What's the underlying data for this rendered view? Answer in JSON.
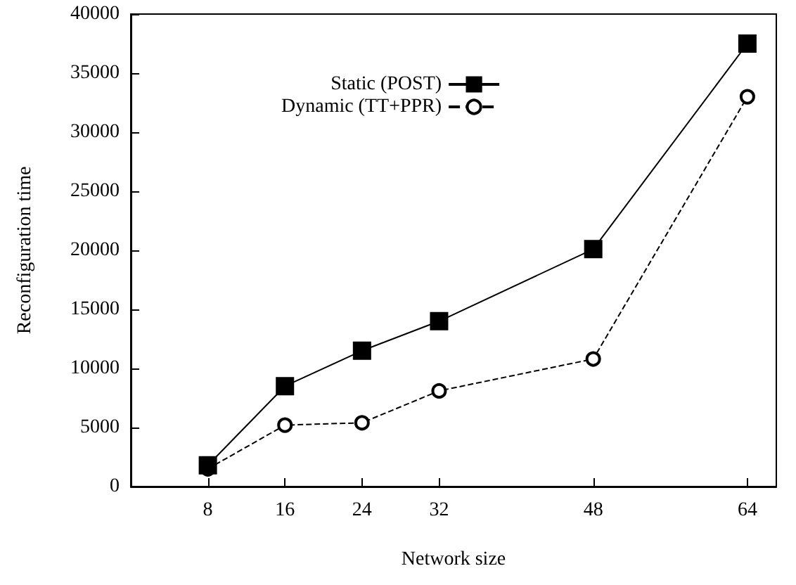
{
  "chart_data": {
    "type": "line",
    "xlabel": "Network size",
    "ylabel": "Reconfiguration time",
    "x": [
      8,
      16,
      24,
      32,
      48,
      64
    ],
    "series": [
      {
        "name": "Static (POST)",
        "color": "#000000",
        "marker": "square",
        "line_style": "solid",
        "values": [
          1800,
          8500,
          11500,
          14000,
          20100,
          37500
        ]
      },
      {
        "name": "Dynamic (TT+PPR)",
        "color": "#000000",
        "marker": "circle",
        "line_style": "dashed",
        "values": [
          1500,
          5200,
          5400,
          8100,
          10800,
          33000
        ]
      }
    ],
    "xlim": [
      0,
      67
    ],
    "xticks": [
      8,
      16,
      24,
      32,
      48,
      64
    ],
    "ylim": [
      0,
      40000
    ],
    "yticks": [
      0,
      5000,
      10000,
      15000,
      20000,
      25000,
      30000,
      35000,
      40000
    ],
    "grid": false,
    "legend": "top left"
  }
}
